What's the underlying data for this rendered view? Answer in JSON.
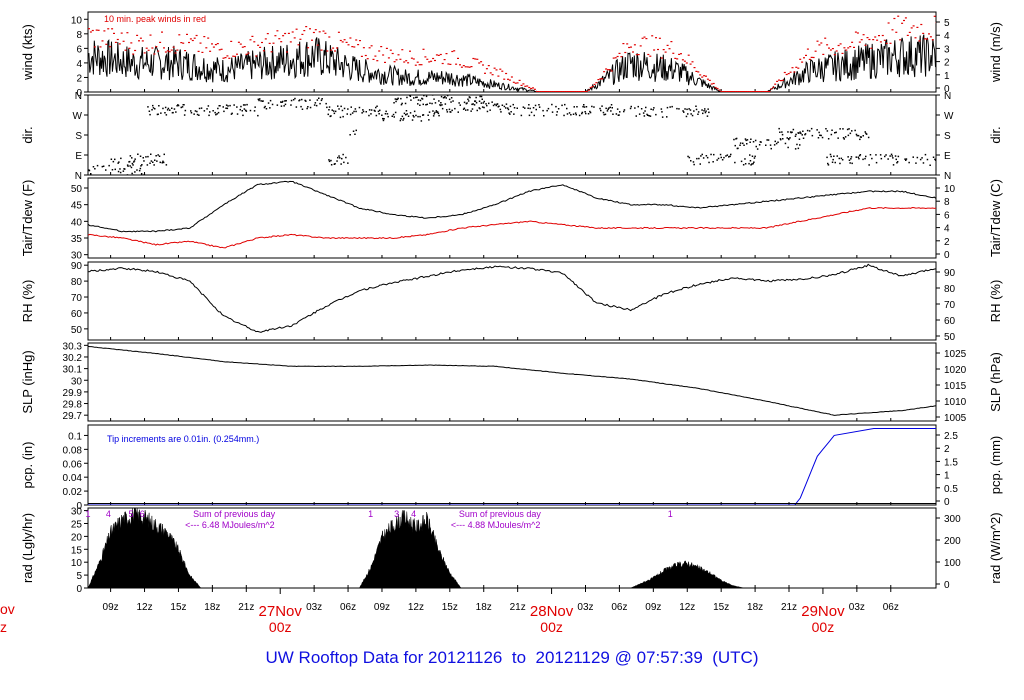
{
  "footer": {
    "prefix": "UW Rooftop Data for",
    "start": "20121126",
    "to": "to",
    "end": "20121129",
    "at": "@",
    "time": "07:57:39",
    "tz": "(UTC)"
  },
  "left_edge": {
    "month": "ov",
    "zone": "z"
  },
  "colors": {
    "black": "#000000",
    "red": "#e00000",
    "blue": "#0000e0",
    "purple": "#a000c8",
    "date_red": "#e00000"
  },
  "chart_data": [
    {
      "type": "line",
      "panel": "wind",
      "ylabel": "wind (kts)",
      "ylabel_right": "wind (m/s)",
      "ylim": [
        0,
        11
      ],
      "yticks": [
        0,
        2,
        4,
        6,
        8,
        10
      ],
      "yticks_right": [
        0,
        1,
        2,
        3,
        4,
        5
      ],
      "annotation": "10 min. peak winds in red",
      "series": [
        {
          "name": "wind",
          "color": "black",
          "x": [
            0,
            4,
            8,
            12,
            16,
            20,
            24,
            28,
            32,
            36,
            40,
            44,
            48,
            52,
            56,
            60,
            64,
            68,
            72
          ],
          "y": [
            5,
            4,
            4,
            3,
            4,
            5,
            3,
            2,
            2,
            1,
            0,
            0,
            4,
            3,
            0,
            0,
            3,
            4,
            5
          ]
        },
        {
          "name": "10 min. peak winds",
          "color": "red",
          "x": [
            0,
            4,
            8,
            12,
            16,
            20,
            24,
            28,
            32,
            36,
            40,
            44,
            48,
            52,
            56,
            60,
            64,
            68,
            72
          ],
          "y": [
            8,
            7,
            7,
            6,
            7,
            8,
            6,
            5,
            5,
            3,
            0,
            0,
            7,
            6,
            0,
            0,
            6,
            7,
            9
          ]
        }
      ]
    },
    {
      "type": "scatter",
      "panel": "dir",
      "ylabel": "dir.",
      "ylabel_right": "dir.",
      "yticks": [
        "N",
        "E",
        "S",
        "W",
        "N"
      ]
    },
    {
      "type": "line",
      "panel": "temperature",
      "ylabel": "Tair/Tdew (F)",
      "ylabel_right": "Tair/Tdew (C)",
      "ylim": [
        29,
        53
      ],
      "yticks": [
        30,
        35,
        40,
        45,
        50
      ],
      "yticks_right": [
        0,
        2,
        4,
        6,
        8,
        10
      ],
      "series": [
        {
          "name": "Tair",
          "color": "black",
          "x": [
            0,
            3,
            6,
            9,
            12,
            15,
            18,
            21,
            24,
            27,
            30,
            33,
            36,
            39,
            42,
            45,
            48,
            51,
            54,
            57,
            60,
            63,
            66,
            69,
            72,
            75
          ],
          "y": [
            39,
            37,
            37,
            38,
            45,
            51,
            52,
            48,
            44,
            42,
            41,
            42,
            45,
            49,
            51,
            47,
            45,
            45,
            44,
            45,
            46,
            47,
            48,
            49,
            49,
            47
          ]
        },
        {
          "name": "Tdew",
          "color": "red",
          "x": [
            0,
            3,
            6,
            9,
            12,
            15,
            18,
            21,
            24,
            27,
            30,
            33,
            36,
            39,
            42,
            45,
            48,
            51,
            54,
            57,
            60,
            63,
            66,
            69,
            72,
            75
          ],
          "y": [
            36,
            35,
            33,
            34,
            32,
            35,
            36,
            35,
            35,
            35,
            36,
            38,
            39,
            40,
            39,
            38,
            38,
            38,
            38,
            38,
            38,
            40,
            42,
            44,
            44,
            44
          ]
        }
      ]
    },
    {
      "type": "line",
      "panel": "rh",
      "ylabel": "RH (%)",
      "ylabel_right": "RH (%)",
      "ylim": [
        43,
        92
      ],
      "yticks": [
        50,
        60,
        70,
        80,
        90
      ],
      "yticks_right": [
        50,
        60,
        70,
        80,
        90
      ],
      "series": [
        {
          "name": "RH",
          "color": "black",
          "x": [
            0,
            3,
            6,
            9,
            12,
            15,
            18,
            21,
            24,
            27,
            30,
            33,
            36,
            39,
            42,
            45,
            48,
            51,
            54,
            57,
            60,
            63,
            66,
            69,
            72,
            75
          ],
          "y": [
            86,
            88,
            86,
            80,
            58,
            48,
            52,
            64,
            74,
            79,
            83,
            87,
            89,
            88,
            85,
            66,
            62,
            72,
            78,
            82,
            80,
            81,
            84,
            90,
            83,
            88
          ]
        }
      ]
    },
    {
      "type": "line",
      "panel": "slp",
      "ylabel": "SLP (inHg)",
      "ylabel_right": "SLP (hPa)",
      "ylim": [
        29.65,
        30.32
      ],
      "yticks": [
        29.7,
        29.8,
        29.9,
        30.0,
        30.1,
        30.2,
        30.3
      ],
      "yticks_right": [
        1005,
        1010,
        1015,
        1020,
        1025
      ],
      "series": [
        {
          "name": "SLP",
          "color": "black",
          "x": [
            0,
            6,
            12,
            18,
            24,
            30,
            36,
            42,
            48,
            54,
            60,
            66,
            72,
            75
          ],
          "y": [
            30.29,
            30.23,
            30.16,
            30.12,
            30.12,
            30.13,
            30.12,
            30.06,
            30.01,
            29.93,
            29.82,
            29.7,
            29.74,
            29.78
          ]
        }
      ]
    },
    {
      "type": "line",
      "panel": "pcp",
      "ylabel": "pcp. (in)",
      "ylabel_right": "pcp. (mm)",
      "ylim": [
        0,
        0.115
      ],
      "yticks": [
        0.0,
        0.02,
        0.04,
        0.06,
        0.08,
        0.1
      ],
      "yticks_right": [
        0,
        0.5,
        1,
        1.5,
        2,
        2.5
      ],
      "annotation": "Tip increments are 0.01in. (0.254mm.)",
      "series": [
        {
          "name": "pcp",
          "color": "blue",
          "x": [
            0,
            62.5,
            63.0,
            63.5,
            64.0,
            64.5,
            65.0,
            65.5,
            66.0,
            69.5,
            75
          ],
          "y": [
            0,
            0,
            0.01,
            0.03,
            0.05,
            0.07,
            0.08,
            0.09,
            0.1,
            0.11,
            0.11
          ]
        }
      ]
    },
    {
      "type": "area",
      "panel": "rad",
      "ylabel": "rad (Lgly/hr)",
      "ylabel_right": "rad (W/m^2)",
      "ylim": [
        0,
        31
      ],
      "yticks": [
        0,
        5,
        10,
        15,
        20,
        25,
        30
      ],
      "yticks_right": [
        0,
        100,
        200,
        300
      ],
      "day_markers": [
        {
          "labels": [
            "1",
            "4",
            "5",
            "6"
          ],
          "hours": [
            7,
            8.8,
            10.8,
            11.8
          ]
        },
        {
          "labels": [
            "1",
            "3",
            "4"
          ],
          "hours": [
            32,
            34.3,
            35.8
          ]
        },
        {
          "labels": [
            "1"
          ],
          "hours": [
            58.5
          ]
        }
      ],
      "notes": [
        {
          "line1": "Sum of previous day",
          "line2": "<--- 6.48 MJoules/m^2"
        },
        {
          "line1": "Sum of previous day",
          "line2": "<--- 4.88 MJoules/m^2"
        }
      ],
      "series": [
        {
          "name": "rad",
          "color": "black",
          "x": [
            7,
            8,
            9,
            10,
            11,
            12,
            13,
            14,
            15,
            16,
            17,
            31,
            32,
            33,
            34,
            35,
            36,
            37,
            38,
            39,
            40,
            55,
            56,
            57,
            58,
            59,
            60,
            61,
            62,
            63,
            64,
            65
          ],
          "y": [
            0,
            10,
            22,
            27,
            29,
            28,
            25,
            22,
            15,
            5,
            0,
            0,
            8,
            20,
            25,
            28,
            24,
            27,
            15,
            6,
            0,
            0,
            2,
            4,
            7,
            9,
            10,
            8,
            6,
            3,
            1,
            0
          ]
        }
      ]
    }
  ],
  "time_axis": {
    "start_hour": 7,
    "end_hour": 82,
    "ticks": [
      "09z",
      "12z",
      "15z",
      "18z",
      "21z",
      "03z",
      "06z",
      "09z",
      "12z",
      "15z",
      "18z",
      "21z",
      "03z",
      "06z",
      "09z",
      "12z",
      "15z",
      "18z",
      "21z",
      "03z",
      "06z"
    ],
    "tick_hours": [
      9,
      12,
      15,
      18,
      21,
      27,
      30,
      33,
      36,
      39,
      42,
      45,
      51,
      54,
      57,
      60,
      63,
      66,
      69,
      75,
      78
    ],
    "dates": [
      {
        "label": "27Nov",
        "sub": "00z",
        "hour": 24
      },
      {
        "label": "28Nov",
        "sub": "00z",
        "hour": 48
      },
      {
        "label": "29Nov",
        "sub": "00z",
        "hour": 72
      }
    ]
  }
}
